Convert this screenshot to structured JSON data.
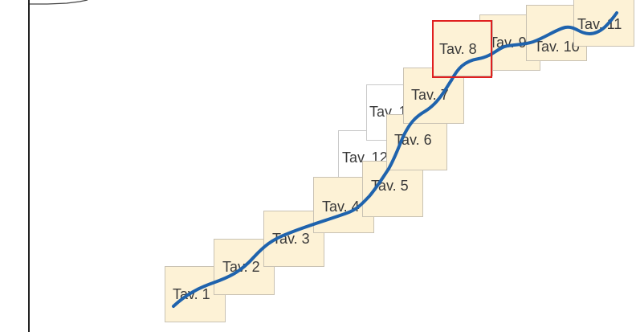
{
  "map": {
    "colors": {
      "sheet_fill": "#fdf2d6",
      "sheet_border": "#c9c2b3",
      "empty_sheet_fill": "#ffffff",
      "route": "#1f63ad",
      "selection": "#e02020",
      "label": "#3a3a3a"
    },
    "selected_sheet": "Tav. 8",
    "sheets": [
      {
        "label": "Tav. 1",
        "filled": true
      },
      {
        "label": "Tav. 2",
        "filled": true
      },
      {
        "label": "Tav. 3",
        "filled": true
      },
      {
        "label": "Tav. 4",
        "filled": true
      },
      {
        "label": "Tav. 5",
        "filled": true
      },
      {
        "label": "Tav. 6",
        "filled": true
      },
      {
        "label": "Tav. 7",
        "filled": true
      },
      {
        "label": "Tav. 8",
        "filled": true
      },
      {
        "label": "Tav. 9",
        "filled": true
      },
      {
        "label": "Tav. 10",
        "filled": true
      },
      {
        "label": "Tav. 11",
        "filled": true
      },
      {
        "label": "Tav. 12",
        "filled": false
      },
      {
        "label": "Tav. 13",
        "filled": false
      }
    ]
  }
}
